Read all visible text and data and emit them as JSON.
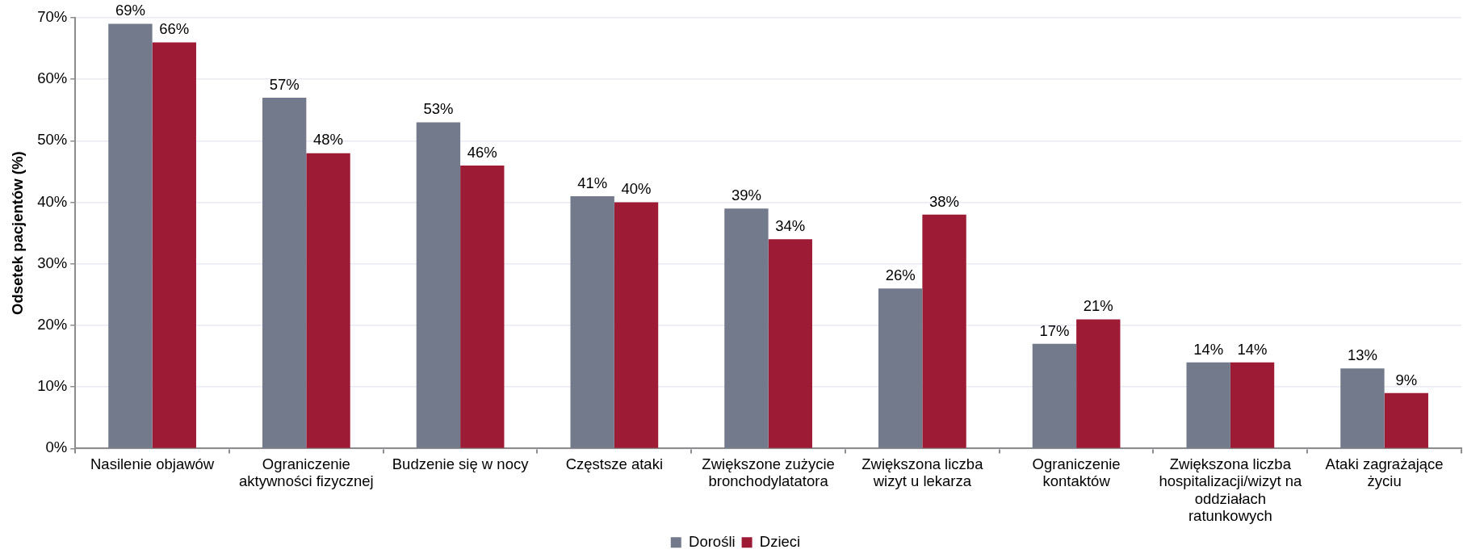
{
  "chart_data": {
    "type": "bar",
    "ylabel": "Odsetek pacjentów (%)",
    "categories": [
      "Nasilenie objawów",
      "Ograniczenie aktywności fizycznej",
      "Budzenie się w nocy",
      "Częstsze ataki",
      "Zwiększone zużycie bronchodylatatora",
      "Zwiększona liczba wizyt u lekarza",
      "Ograniczenie kontaktów",
      "Zwiększona liczba hospitalizacji/wizyt na oddziałach ratunkowych",
      "Ataki zagrażające życiu"
    ],
    "series": [
      {
        "name": "Dorośli",
        "color": "#737a8c",
        "values": [
          69,
          57,
          53,
          41,
          39,
          26,
          17,
          14,
          13
        ],
        "value_labels": [
          "69%",
          "57%",
          "53%",
          "41%",
          "39%",
          "26%",
          "17%",
          "14%",
          "13%"
        ]
      },
      {
        "name": "Dzieci",
        "color": "#9e1b36",
        "values": [
          66,
          48,
          46,
          40,
          34,
          38,
          21,
          14,
          9
        ],
        "value_labels": [
          "66%",
          "48%",
          "46%",
          "40%",
          "34%",
          "38%",
          "21%",
          "14%",
          "9%"
        ]
      }
    ],
    "ylim": [
      0,
      70
    ],
    "yticks": [
      {
        "value": 0,
        "label": "0%"
      },
      {
        "value": 10,
        "label": "10%"
      },
      {
        "value": 20,
        "label": "20%"
      },
      {
        "value": 30,
        "label": "30%"
      },
      {
        "value": 40,
        "label": "40%"
      },
      {
        "value": 50,
        "label": "50%"
      },
      {
        "value": 60,
        "label": "60%"
      },
      {
        "value": 70,
        "label": "70%"
      }
    ],
    "grid": "y",
    "legend": "bottom"
  }
}
